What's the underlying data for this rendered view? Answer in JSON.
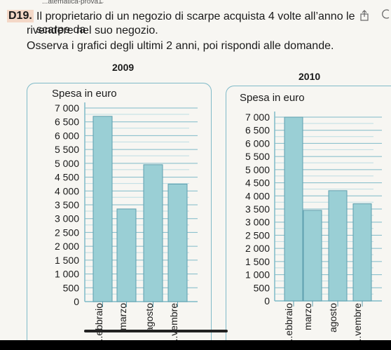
{
  "topbar": {
    "title": "...atematica-prova1",
    "chevron": "⌄"
  },
  "icons": {
    "share": "share-icon",
    "extra": "circle-icon"
  },
  "problem": {
    "number": "D19.",
    "line1": "Il proprietario di un negozio di scarpe acquista 4 volte all’anno le scarpe da",
    "line2": "rivendere nel suo negozio.",
    "line3": "Osserva i grafici degli ultimi 2 anni, poi rispondi alle domande."
  },
  "chart_data": [
    {
      "type": "bar",
      "title": "2009",
      "ylabel": "Spesa in euro",
      "categories": [
        "...ebbraio",
        "marzo",
        "agosto",
        "...vembre"
      ],
      "values": [
        6700,
        3350,
        4950,
        4250
      ],
      "ylim": [
        0,
        7000
      ],
      "yticks": [
        "7 000",
        "6 500",
        "6 000",
        "5 500",
        "5 000",
        "4 500",
        "4 000",
        "3 500",
        "3 000",
        "2 500",
        "2 000",
        "1 500",
        "1 000",
        "500",
        "0"
      ],
      "grid": true,
      "bar_color": "#9acfd5"
    },
    {
      "type": "bar",
      "title": "2010",
      "ylabel": "Spesa in euro",
      "categories": [
        "...ebbraio",
        "marzo",
        "agosto",
        "...vembre"
      ],
      "values": [
        7000,
        3450,
        4200,
        3700
      ],
      "ylim": [
        0,
        7000
      ],
      "yticks": [
        "7 000",
        "6 500",
        "6 000",
        "5 500",
        "5 000",
        "4 500",
        "4 000",
        "3 500",
        "3 000",
        "2 500",
        "2 000",
        "1 500",
        "1 000",
        "500",
        "0"
      ],
      "grid": true,
      "bar_color": "#9acfd5"
    }
  ]
}
